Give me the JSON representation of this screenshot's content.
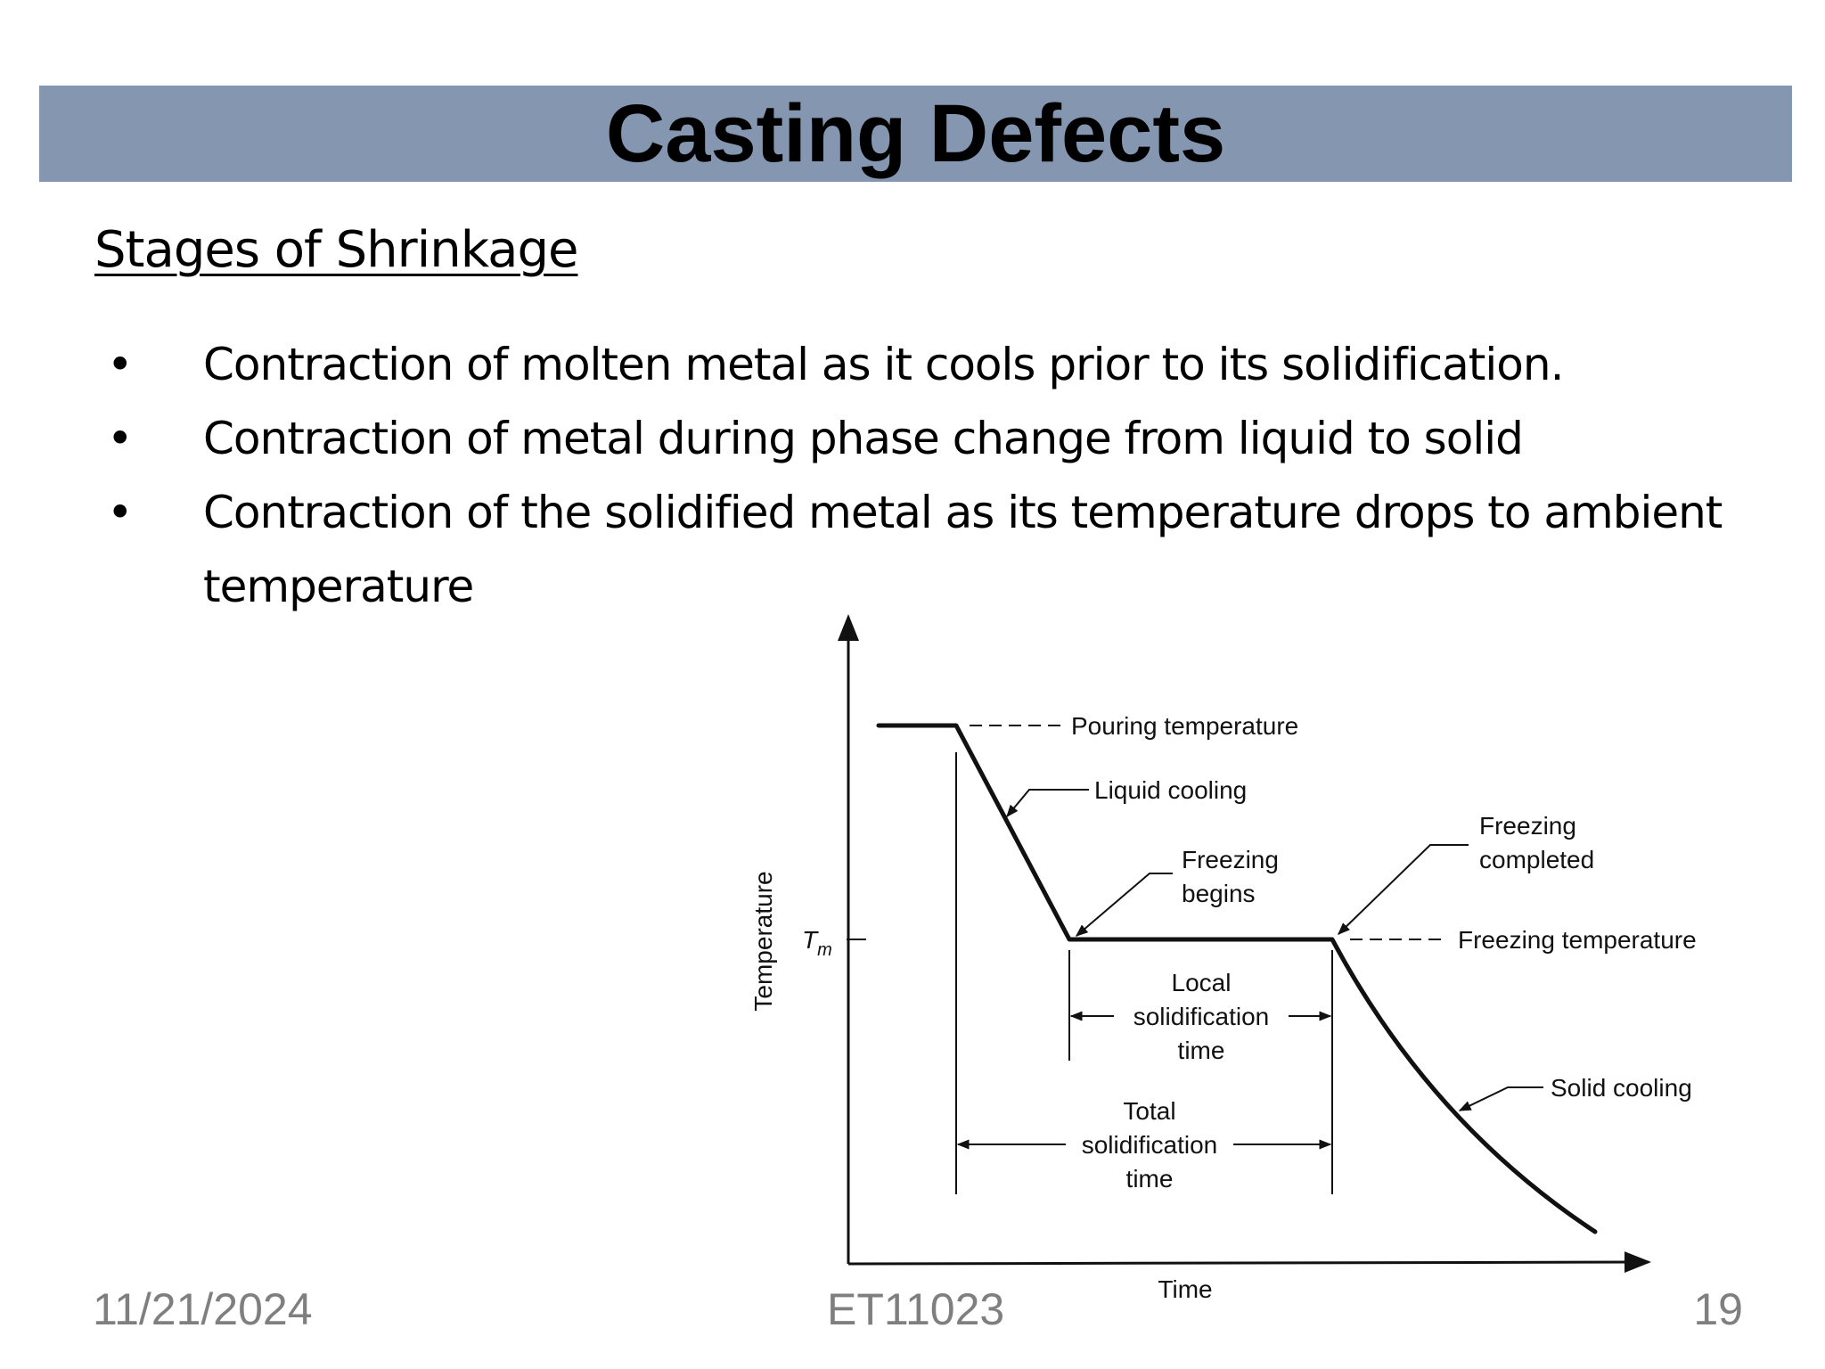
{
  "slide": {
    "title": "Casting Defects",
    "subtitle": "Stages of Shrinkage",
    "bullets": [
      "Contraction of molten metal as it cools prior to its solidification.",
      "Contraction of metal during phase change from liquid to solid",
      "Contraction of the solidified metal as its temperature drops to ambient temperature"
    ],
    "bullet_symbol": "•"
  },
  "diagram": {
    "y_axis_label": "Temperature",
    "x_axis_label": "Time",
    "tm_label": "T",
    "tm_subscript": "m",
    "labels": {
      "pouring": "Pouring temperature",
      "liquid_cooling": "Liquid cooling",
      "freezing_begins_1": "Freezing",
      "freezing_begins_2": "begins",
      "freezing_completed_1": "Freezing",
      "freezing_completed_2": "completed",
      "freezing_temperature": "Freezing temperature",
      "local_1": "Local",
      "local_2": "solidification",
      "local_3": "time",
      "total_1": "Total",
      "total_2": "solidification",
      "total_3": "time",
      "solid_cooling": "Solid cooling"
    }
  },
  "footer": {
    "date": "11/21/2024",
    "code": "ET11023",
    "page": "19"
  },
  "colors": {
    "title_bar": "#8496b0",
    "footer_text": "#7f7f7f"
  }
}
